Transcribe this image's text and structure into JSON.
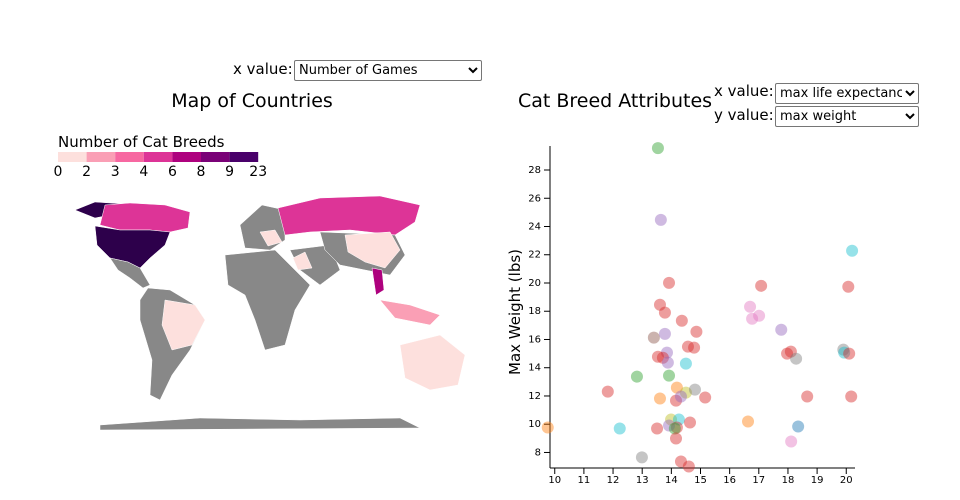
{
  "controls": {
    "map_x_label": "x value:",
    "map_x_selected": "Number of Games",
    "scatter_x_label": "x value:",
    "scatter_x_selected": "max life expectancy",
    "scatter_y_label": "y value:",
    "scatter_y_selected": "max weight"
  },
  "chart_data": [
    {
      "type": "choropleth",
      "title": "Map of Countries",
      "legend_title": "Number of Cat Breeds",
      "legend_ticks": [
        0,
        2,
        3,
        4,
        6,
        8,
        9,
        23
      ],
      "legend_colors": [
        "#fde0dd",
        "#fa9fb5",
        "#f768a1",
        "#dd3497",
        "#ae017e",
        "#7a0177",
        "#49006a"
      ]
    },
    {
      "type": "scatter",
      "title": "Cat Breed Attributes",
      "y_label": "Max Weight (lbs)",
      "xlim": [
        9.7,
        20.3
      ],
      "ylim": [
        6.9,
        29.7
      ],
      "xticks": [
        10,
        11,
        12,
        13,
        14,
        15,
        16,
        17,
        18,
        19,
        20
      ],
      "yticks": [
        8,
        10,
        12,
        14,
        16,
        18,
        20,
        22,
        24,
        26,
        28
      ],
      "x": [
        9.76,
        13.54,
        13.64,
        20.2,
        13.92,
        17.08,
        20.07,
        16.7,
        13.61,
        13.78,
        14.36,
        17.01,
        16.77,
        14.86,
        13.4,
        13.78,
        17.77,
        13.85,
        14.57,
        14.78,
        13.54,
        13.71,
        13.88,
        14.5,
        19.9,
        19.93,
        20.1,
        17.97,
        18.1,
        18.28,
        12.82,
        13.92,
        11.82,
        14.19,
        14.5,
        14.81,
        14.16,
        13.61,
        14.33,
        15.16,
        18.66,
        20.17,
        13.99,
        14.26,
        14.64,
        16.63,
        13.51,
        14.19,
        13.92,
        12.23,
        14.12,
        18.35,
        14.16,
        18.11,
        12.99,
        14.33,
        14.6
      ],
      "values": [
        9.77,
        29.55,
        24.47,
        22.28,
        20.01,
        19.8,
        19.73,
        18.32,
        18.46,
        17.9,
        17.33,
        17.68,
        17.47,
        16.55,
        16.13,
        16.4,
        16.69,
        15.07,
        15.49,
        15.42,
        14.78,
        14.71,
        14.36,
        14.29,
        15.28,
        15.07,
        15.0,
        15.0,
        15.14,
        14.64,
        13.37,
        13.44,
        12.31,
        12.59,
        12.24,
        12.45,
        11.67,
        11.82,
        11.96,
        11.89,
        11.96,
        11.96,
        10.33,
        10.33,
        10.12,
        10.19,
        9.7,
        9.77,
        9.91,
        9.7,
        9.7,
        9.84,
        8.99,
        8.78,
        7.65,
        7.36,
        7.01
      ],
      "colors": [
        "#ff7f0e",
        "#2ca02c",
        "#9467bd",
        "#17becf",
        "#d62728",
        "#d62728",
        "#d62728",
        "#e377c2",
        "#d62728",
        "#d62728",
        "#d62728",
        "#e377c2",
        "#e377c2",
        "#d62728",
        "#8c564b",
        "#9467bd",
        "#9467bd",
        "#9467bd",
        "#d62728",
        "#d62728",
        "#d62728",
        "#d62728",
        "#9467bd",
        "#17becf",
        "#7f7f7f",
        "#17becf",
        "#d62728",
        "#d62728",
        "#d62728",
        "#7f7f7f",
        "#2ca02c",
        "#2ca02c",
        "#d62728",
        "#ff7f0e",
        "#bcbd22",
        "#7f7f7f",
        "#d62728",
        "#ff7f0e",
        "#9467bd",
        "#d62728",
        "#d62728",
        "#d62728",
        "#bcbd22",
        "#17becf",
        "#d62728",
        "#ff7f0e",
        "#d62728",
        "#d62728",
        "#9467bd",
        "#17becf",
        "#2ca02c",
        "#1f77b4",
        "#d62728",
        "#e377c2",
        "#7f7f7f",
        "#d62728",
        "#d62728"
      ]
    }
  ]
}
